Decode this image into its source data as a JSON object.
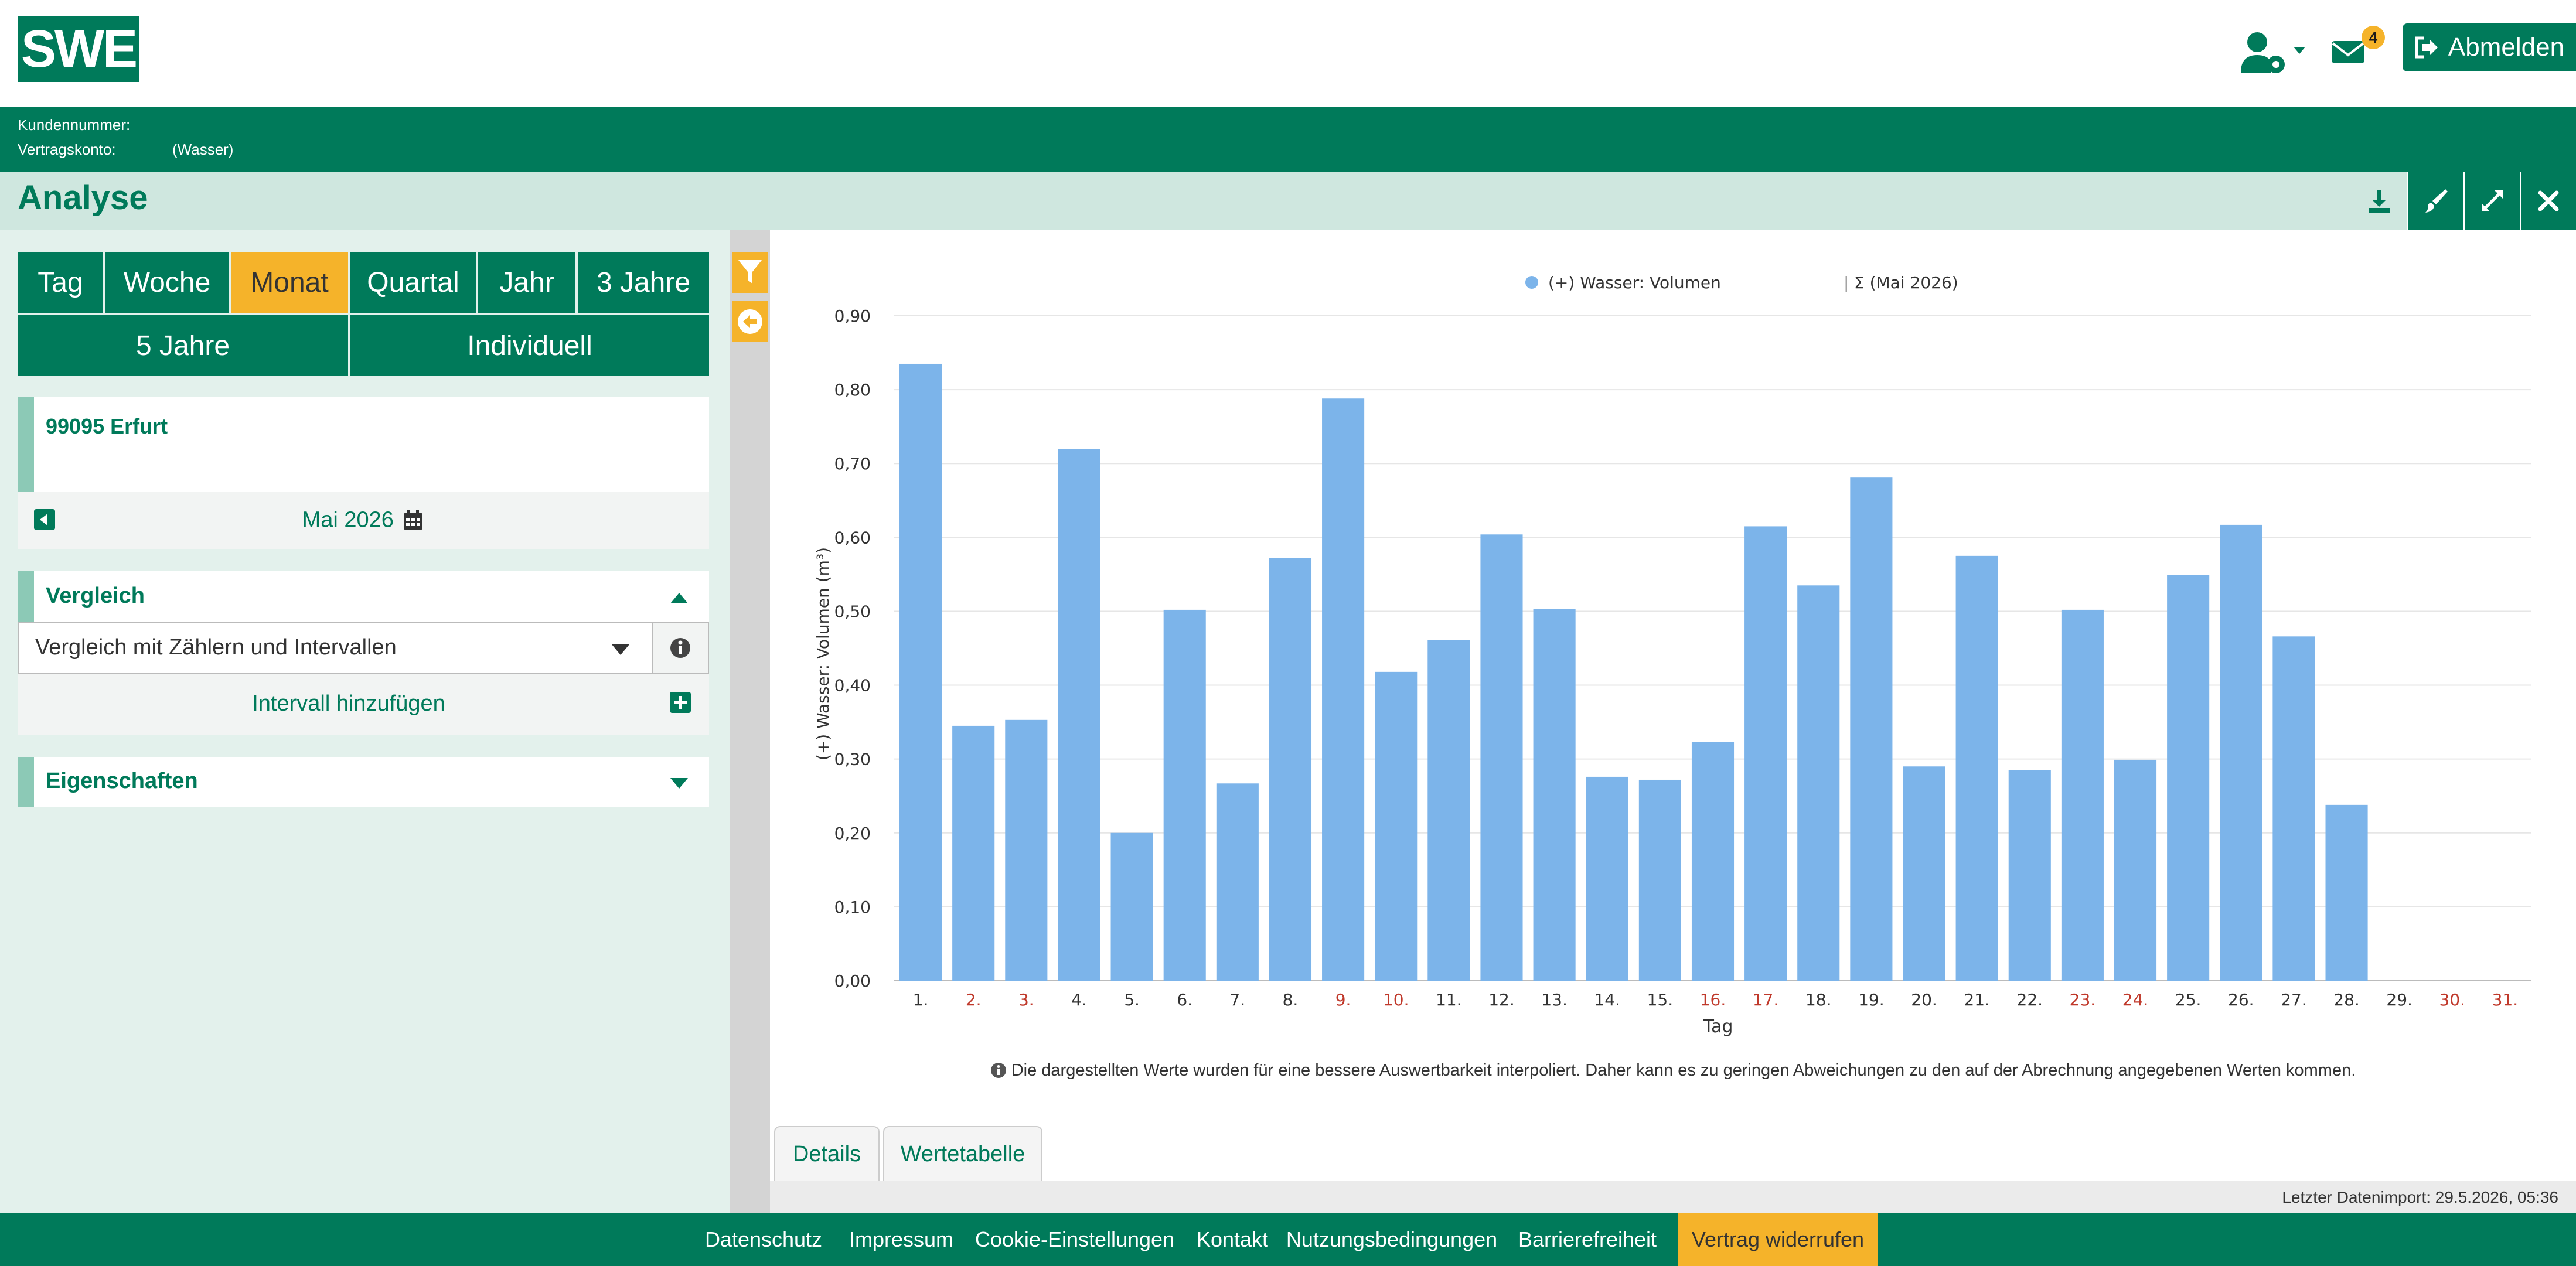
{
  "header": {
    "logo_text": "SWE",
    "notification_count": "4",
    "logout_label": "Abmelden",
    "user_icon": "user-cog-icon",
    "mail_icon": "envelope-icon"
  },
  "account": {
    "kundennummer_label": "Kundennummer:",
    "vertragskonto_label": "Vertragskonto:",
    "vertragskonto_value": "(Wasser)"
  },
  "title_bar": {
    "title": "Analyse",
    "icons": [
      "download-icon",
      "brush-icon",
      "expand-icon",
      "close-icon"
    ]
  },
  "periods": {
    "tag": "Tag",
    "woche": "Woche",
    "monat": "Monat",
    "quartal": "Quartal",
    "jahr": "Jahr",
    "drei_jahre": "3 Jahre",
    "fuenf_jahre": "5 Jahre",
    "individuell": "Individuell",
    "active": "Monat"
  },
  "location": {
    "name": "99095 Erfurt",
    "month": "Mai 2026"
  },
  "vergleich": {
    "title": "Vergleich",
    "select_value": "Vergleich mit Zählern und Intervallen",
    "add_interval": "Intervall hinzufügen"
  },
  "eigenschaften": {
    "title": "Eigenschaften"
  },
  "chart_data": {
    "type": "bar",
    "legend_label": "(+) Wasser: Volumen",
    "legend_suffix": "Σ (Mai 2026)",
    "legend_position": "top-center",
    "xlabel": "Tag",
    "ylabel": "(+) Wasser: Volumen (m³)",
    "ylim": [
      0,
      0.9
    ],
    "yticks": [
      "0,00",
      "0,10",
      "0,20",
      "0,30",
      "0,40",
      "0,50",
      "0,60",
      "0,70",
      "0,80",
      "0,90"
    ],
    "grid": true,
    "bar_color": "#7cb4ea",
    "categories": [
      "1.",
      "2.",
      "3.",
      "4.",
      "5.",
      "6.",
      "7.",
      "8.",
      "9.",
      "10.",
      "11.",
      "12.",
      "13.",
      "14.",
      "15.",
      "16.",
      "17.",
      "18.",
      "19.",
      "20.",
      "21.",
      "22.",
      "23.",
      "24.",
      "25.",
      "26.",
      "27.",
      "28.",
      "29.",
      "30.",
      "31."
    ],
    "highlighted_days": [
      "2.",
      "3.",
      "9.",
      "10.",
      "16.",
      "17.",
      "23.",
      "24.",
      "30.",
      "31."
    ],
    "highlight_color": "#c0392b",
    "values": [
      0.835,
      0.345,
      0.353,
      0.72,
      0.2,
      0.502,
      0.267,
      0.572,
      0.788,
      0.418,
      0.461,
      0.604,
      0.503,
      0.276,
      0.272,
      0.323,
      0.615,
      0.535,
      0.681,
      0.29,
      0.575,
      0.285,
      0.502,
      0.299,
      0.549,
      0.617,
      0.466,
      0.238,
      null,
      null,
      null
    ]
  },
  "chart_note": "Die dargestellten Werte wurden für eine bessere Auswertbarkeit interpoliert. Daher kann es zu geringen Abweichungen zu den auf der Abrechnung angegebenen Werten kommen.",
  "tabs": {
    "details": "Details",
    "wertetabelle": "Wertetabelle"
  },
  "status": {
    "import_label": "Letzter Datenimport: 29.5.2026, 05:36"
  },
  "footer": {
    "datenschutz": "Datenschutz",
    "impressum": "Impressum",
    "cookie": "Cookie-Einstellungen",
    "kontakt": "Kontakt",
    "nutzung": "Nutzungsbedingungen",
    "barriere": "Barrierefreiheit",
    "widerrufen": "Vertrag widerrufen"
  },
  "colors": {
    "brand_green": "#007a5a",
    "accent_yellow": "#f5b32a",
    "light_green": "#cfe7df"
  }
}
